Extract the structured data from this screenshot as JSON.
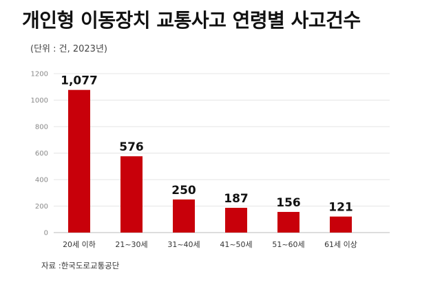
{
  "title": "개인형 이동장치 교통사고 연령별 사고건수",
  "subtitle": "(단위 : 건, 2023년)",
  "source": "자료 :한국도로교통공단",
  "colors": {
    "bar": "#c8000a",
    "grid": "#e5e5e5",
    "axis": "#bbbbbb"
  },
  "chart_data": {
    "type": "bar",
    "categories": [
      "20세 이하",
      "21~30세",
      "31~40세",
      "41~50세",
      "51~60세",
      "61세 이상"
    ],
    "values": [
      1077,
      576,
      250,
      187,
      156,
      121
    ],
    "data_labels": [
      "1,077",
      "576",
      "250",
      "187",
      "156",
      "121"
    ],
    "title": "개인형 이동장치 교통사고 연령별 사고건수",
    "xlabel": "",
    "ylabel": "",
    "ylim": [
      0,
      1200
    ],
    "yticks": [
      0,
      200,
      400,
      600,
      800,
      1000,
      1200
    ],
    "grid": true,
    "legend": "none"
  }
}
